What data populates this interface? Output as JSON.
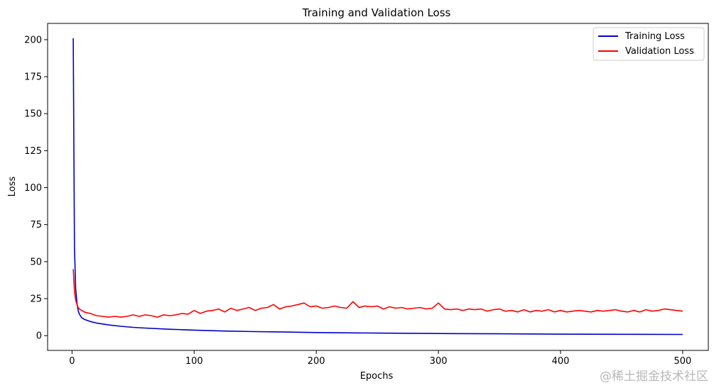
{
  "chart_data": {
    "type": "line",
    "title": "Training and Validation Loss",
    "xlabel": "Epochs",
    "ylabel": "Loss",
    "xlim": [
      -20,
      521
    ],
    "ylim": [
      -10,
      211
    ],
    "xticks": [
      0,
      100,
      200,
      300,
      400,
      500
    ],
    "yticks": [
      0,
      25,
      50,
      75,
      100,
      125,
      150,
      175,
      200
    ],
    "legend_position": "top-right",
    "grid": false,
    "series": [
      {
        "name": "Training Loss",
        "color": "#0000cc",
        "x": [
          1,
          2,
          3,
          4,
          5,
          6,
          8,
          10,
          15,
          20,
          30,
          40,
          50,
          60,
          80,
          100,
          125,
          150,
          175,
          200,
          250,
          300,
          350,
          400,
          450,
          500
        ],
        "values": [
          201,
          60,
          32,
          22,
          17,
          14.5,
          12,
          11,
          9.5,
          8.5,
          7.2,
          6.3,
          5.6,
          5.1,
          4.3,
          3.7,
          3.1,
          2.7,
          2.4,
          2.1,
          1.7,
          1.4,
          1.2,
          1.0,
          0.9,
          0.8
        ]
      },
      {
        "name": "Validation Loss",
        "color": "#ff0000",
        "x": [
          1,
          2,
          3,
          4,
          5,
          6,
          8,
          10,
          12,
          15,
          18,
          20,
          25,
          30,
          35,
          40,
          45,
          50,
          55,
          60,
          65,
          70,
          75,
          80,
          85,
          90,
          95,
          100,
          105,
          110,
          115,
          120,
          125,
          130,
          135,
          140,
          145,
          150,
          155,
          160,
          165,
          170,
          175,
          180,
          185,
          190,
          195,
          200,
          205,
          210,
          215,
          220,
          225,
          230,
          235,
          240,
          245,
          250,
          255,
          260,
          265,
          270,
          275,
          280,
          285,
          290,
          295,
          300,
          305,
          310,
          315,
          320,
          325,
          330,
          335,
          340,
          345,
          350,
          355,
          360,
          365,
          370,
          375,
          380,
          385,
          390,
          395,
          400,
          405,
          410,
          415,
          420,
          425,
          430,
          435,
          440,
          445,
          450,
          455,
          460,
          465,
          470,
          475,
          480,
          485,
          490,
          495,
          500
        ],
        "values": [
          45,
          30,
          24,
          21,
          19,
          18,
          17,
          16,
          15.5,
          15,
          14,
          13.5,
          13,
          12.5,
          13,
          12.5,
          13,
          14,
          13,
          14,
          13.5,
          12.5,
          14,
          13.5,
          14,
          15,
          14.5,
          17,
          15,
          16.5,
          17,
          18,
          16,
          18.5,
          17,
          18,
          19,
          17,
          18.5,
          19,
          21,
          18,
          19.5,
          20,
          21,
          22,
          19.5,
          20,
          18.5,
          19,
          20,
          19,
          18.5,
          23,
          19,
          20,
          19.5,
          20,
          18,
          19.5,
          18.5,
          19,
          18,
          18.5,
          19,
          18,
          18.5,
          22,
          18,
          17.5,
          18,
          17,
          18,
          17.5,
          18,
          16.5,
          17.5,
          18,
          16.5,
          17,
          16,
          17.5,
          16,
          17,
          16.5,
          17.5,
          16,
          17,
          16,
          16.5,
          17,
          16.5,
          16,
          17,
          16.5,
          17,
          17.5,
          16.5,
          16,
          17,
          16,
          17.5,
          16.5,
          17,
          18,
          17.5,
          17,
          16.5
        ]
      }
    ]
  },
  "watermark": "@稀土掘金技术社区"
}
